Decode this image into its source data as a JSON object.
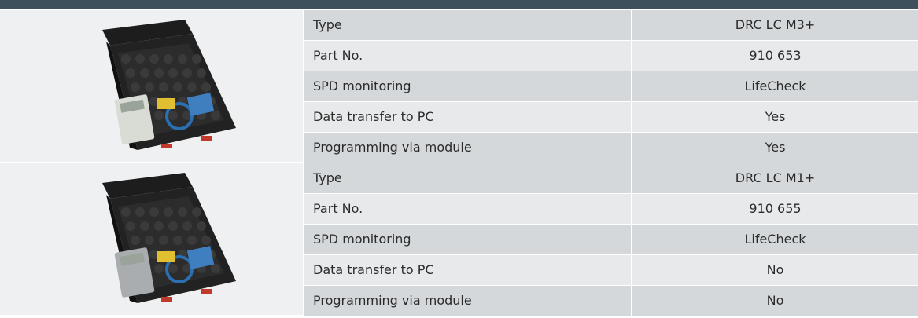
{
  "products": [
    {
      "rows": [
        [
          "Type",
          "DRC LC M3+"
        ],
        [
          "Part No.",
          "910 653"
        ],
        [
          "SPD monitoring",
          "LifeCheck"
        ],
        [
          "Data transfer to PC",
          "Yes"
        ],
        [
          "Programming via module",
          "Yes"
        ]
      ]
    },
    {
      "rows": [
        [
          "Type",
          "DRC LC M1+"
        ],
        [
          "Part No.",
          "910 655"
        ],
        [
          "SPD monitoring",
          "LifeCheck"
        ],
        [
          "Data transfer to PC",
          "No"
        ],
        [
          "Programming via module",
          "No"
        ]
      ]
    }
  ]
}
